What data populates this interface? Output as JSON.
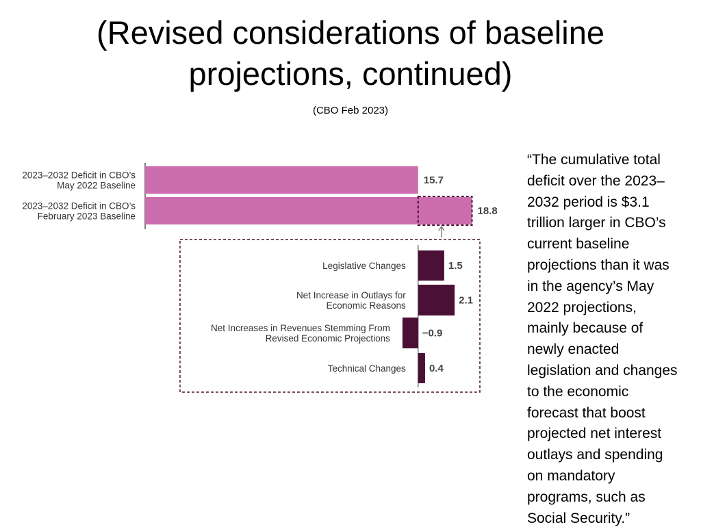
{
  "slide": {
    "title_line1": "(Revised considerations of baseline",
    "title_line2": "projections, continued)",
    "subtitle": "(CBO Feb 2023)"
  },
  "quote": {
    "lines": [
      "“The cumulative total",
      "deficit over the 2023–",
      "2032 period is $3.1",
      "trillion larger in CBO’s",
      "current baseline",
      "projections than it was",
      "in the agency’s May",
      "2022 projections,",
      "mainly because of",
      "newly enacted",
      "legislation and changes",
      "to the economic",
      "forecast that boost",
      "projected net interest",
      "outlays and spending",
      "on mandatory",
      "programs, such as",
      "Social Security.”"
    ]
  },
  "chart_data": {
    "type": "bar",
    "orientation": "horizontal",
    "units": "trillions of dollars",
    "baselines": [
      {
        "label_lines": [
          "2023–2032 Deficit in CBO’s",
          "May 2022 Baseline"
        ],
        "value": 15.7,
        "value_label": "15.7"
      },
      {
        "label_lines": [
          "2023–2032 Deficit in CBO’s",
          "February 2023 Baseline"
        ],
        "value": 18.8,
        "value_label": "18.8"
      }
    ],
    "changes": [
      {
        "label_lines": [
          "Legislative Changes"
        ],
        "value": 1.5,
        "value_label": "1.5"
      },
      {
        "label_lines": [
          "Net Increase in Outlays for",
          "Economic Reasons"
        ],
        "value": 2.1,
        "value_label": "2.1"
      },
      {
        "label_lines": [
          "Net Increases in Revenues Stemming From",
          "Revised Economic Projections"
        ],
        "value": -0.9,
        "value_label": "−0.9"
      },
      {
        "label_lines": [
          "Technical Changes"
        ],
        "value": 0.4,
        "value_label": "0.4"
      }
    ],
    "colors": {
      "baseline": "#cc6eae",
      "change": "#4a1036",
      "dashed": "#4a1036",
      "axis": "#555555"
    }
  }
}
